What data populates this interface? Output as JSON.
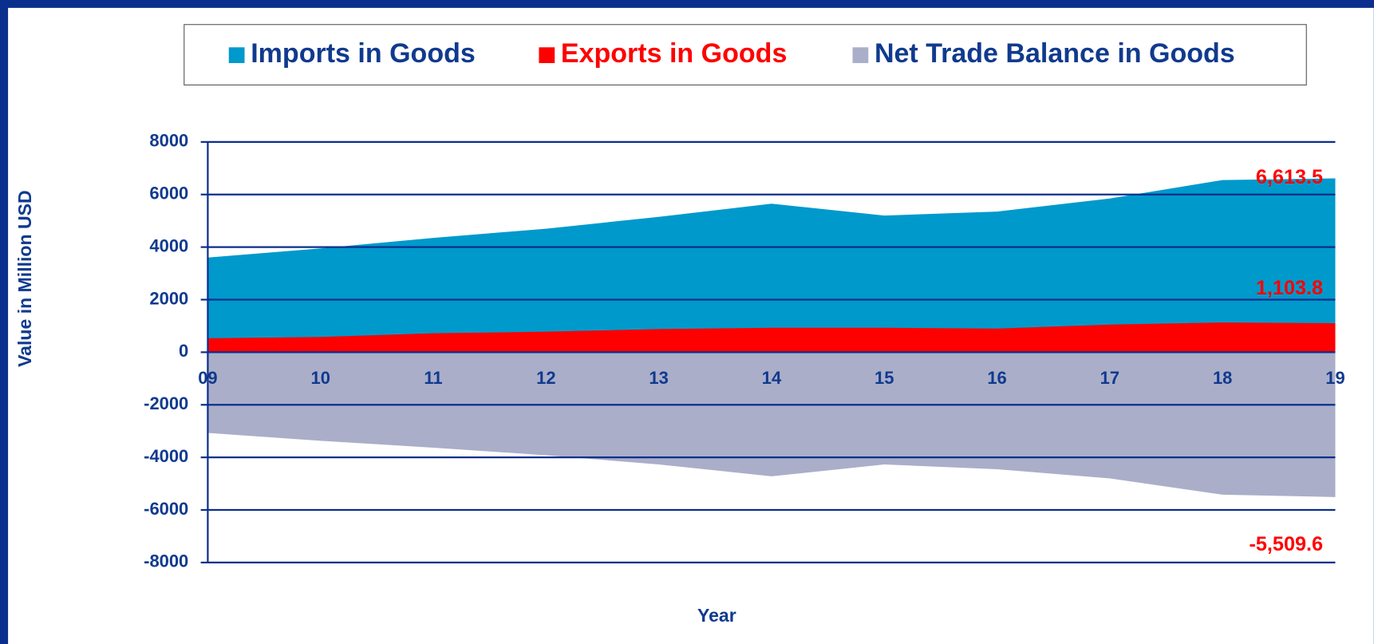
{
  "chart_data": {
    "type": "area",
    "x_label": "Year",
    "y_label": "Value in Million USD",
    "categories": [
      "09",
      "10",
      "11",
      "12",
      "13",
      "14",
      "15",
      "16",
      "17",
      "18",
      "19"
    ],
    "series": [
      {
        "name": "Imports in Goods",
        "color": "#0099cc",
        "values": [
          3600,
          3950,
          4350,
          4700,
          5150,
          5650,
          5200,
          5350,
          5850,
          6550,
          6613.5
        ],
        "value_labels": [
          null,
          null,
          null,
          null,
          null,
          null,
          null,
          null,
          null,
          null,
          "6,613.5"
        ]
      },
      {
        "name": "Exports in Goods",
        "color": "#ff0000",
        "values": [
          530,
          580,
          720,
          780,
          880,
          930,
          930,
          900,
          1050,
          1130,
          1103.8
        ],
        "value_labels": [
          null,
          null,
          null,
          null,
          null,
          null,
          null,
          null,
          null,
          null,
          "1,103.8"
        ]
      },
      {
        "name": "Net Trade Balance in Goods",
        "color": "#aaaec9",
        "values": [
          -3070,
          -3370,
          -3630,
          -3920,
          -4270,
          -4720,
          -4270,
          -4450,
          -4800,
          -5420,
          -5509.6
        ],
        "value_labels": [
          null,
          null,
          null,
          null,
          null,
          null,
          null,
          null,
          null,
          null,
          "-5,509.6"
        ]
      }
    ],
    "ylim": [
      -8000,
      8000
    ],
    "yticks": [
      -8000,
      -6000,
      -4000,
      -2000,
      0,
      2000,
      4000,
      6000,
      8000
    ],
    "grid": true
  }
}
